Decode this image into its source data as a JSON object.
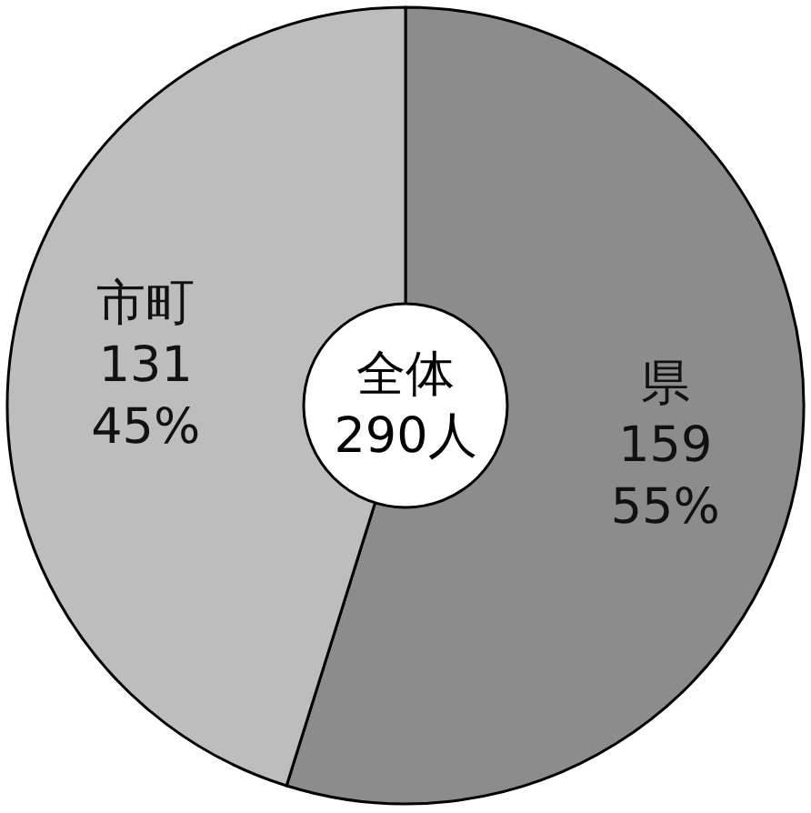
{
  "chart_data": {
    "type": "donut",
    "categories": [
      "県",
      "市町"
    ],
    "values": [
      159,
      131
    ],
    "colors": [
      "#8c8c8c",
      "#bdbdbd"
    ],
    "value_labels": [
      "159 55%",
      "131 45%"
    ],
    "annotations": [
      "全体",
      "290人"
    ]
  }
}
